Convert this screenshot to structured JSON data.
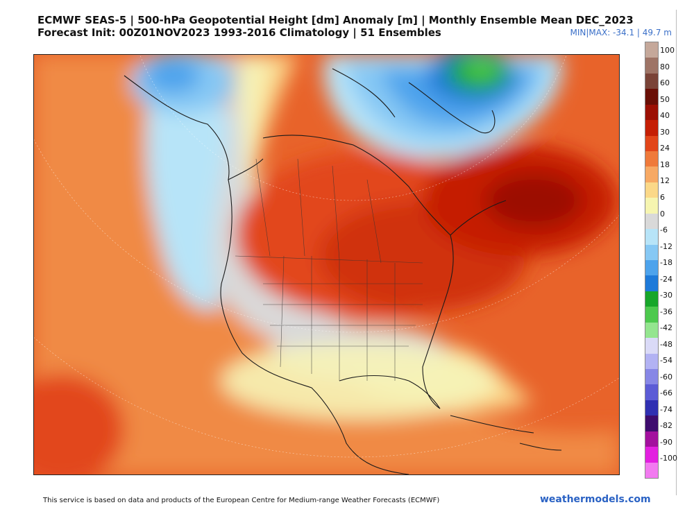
{
  "title": {
    "line1": "ECMWF SEAS-5 | 500-hPa Geopotential Height [dm] Anomaly [m] | Monthly Ensemble Mean DEC_2023",
    "line2": "Forecast Init: 00Z01NOV2023     1993-2016 Climatology | 51 Ensembles"
  },
  "minmax": "MIN|MAX: -34.1 | 49.7 m",
  "colorbar": {
    "labels": [
      "100",
      "80",
      "60",
      "50",
      "40",
      "30",
      "24",
      "18",
      "12",
      "6",
      "0",
      "-6",
      "-12",
      "-18",
      "-24",
      "-30",
      "-36",
      "-42",
      "-48",
      "-54",
      "-60",
      "-66",
      "-74",
      "-82",
      "-90",
      "-100"
    ],
    "colors": [
      "#c5a89a",
      "#9e7466",
      "#7a4337",
      "#6a0f06",
      "#9c1004",
      "#c51f05",
      "#e2461a",
      "#ef7a3b",
      "#f7a964",
      "#fbd888",
      "#f6f5b0",
      "#d9d9d9",
      "#b7e4f8",
      "#86c8f4",
      "#4da3ec",
      "#1e7ad9",
      "#17a62a",
      "#4dc94e",
      "#94e58f",
      "#dadaf7",
      "#b2b2f3",
      "#8787e6",
      "#5c5cd6",
      "#3030b2",
      "#3e0c6e",
      "#a3109e",
      "#e320e0",
      "#f27af0"
    ]
  },
  "map": {
    "projection": "polar stereographic",
    "variable": "500-hPa geopotential height anomaly",
    "units": "m"
  },
  "footer": {
    "credit": "This service is based on data and products of the European Centre for Medium-range Weather Forecasts (ECMWF)",
    "site": "weathermodels.com"
  }
}
